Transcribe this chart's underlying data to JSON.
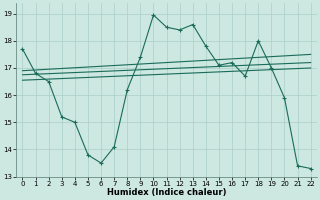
{
  "x_values": [
    0,
    1,
    2,
    3,
    4,
    5,
    6,
    7,
    8,
    9,
    10,
    11,
    12,
    13,
    14,
    15,
    16,
    17,
    18,
    19,
    20,
    21,
    22
  ],
  "line_upper": [
    17.7,
    16.8,
    16.5,
    null,
    null,
    null,
    null,
    null,
    16.2,
    17.4,
    18.95,
    18.5,
    18.4,
    18.6,
    17.8,
    null,
    null,
    null,
    18.0,
    17.0,
    null,
    null,
    null
  ],
  "line_lower": [
    null,
    null,
    null,
    15.2,
    15.0,
    null,
    13.5,
    14.1,
    14.8,
    null,
    null,
    null,
    null,
    null,
    null,
    17.1,
    17.2,
    16.7,
    null,
    null,
    15.9,
    13.4,
    null
  ],
  "line_main": [
    17.7,
    16.8,
    16.5,
    15.2,
    15.0,
    13.8,
    13.5,
    14.1,
    16.2,
    17.4,
    18.95,
    18.5,
    18.4,
    18.6,
    17.8,
    17.1,
    17.2,
    16.7,
    18.0,
    17.0,
    15.9,
    13.4,
    13.3
  ],
  "trend1": [
    16.9,
    17.5
  ],
  "trend2": [
    16.75,
    17.2
  ],
  "trend3": [
    16.55,
    17.0
  ],
  "trend_x": [
    0,
    22
  ],
  "background_color": "#cce8e0",
  "grid_color": "#aacfc7",
  "line_color": "#1a6b5a",
  "ylim": [
    13,
    19.4
  ],
  "yticks": [
    13,
    14,
    15,
    16,
    17,
    18,
    19
  ],
  "xticks": [
    0,
    1,
    2,
    3,
    4,
    5,
    6,
    7,
    8,
    9,
    10,
    11,
    12,
    13,
    14,
    15,
    16,
    17,
    18,
    19,
    20,
    21,
    22
  ],
  "xlabel": "Humidex (Indice chaleur)"
}
